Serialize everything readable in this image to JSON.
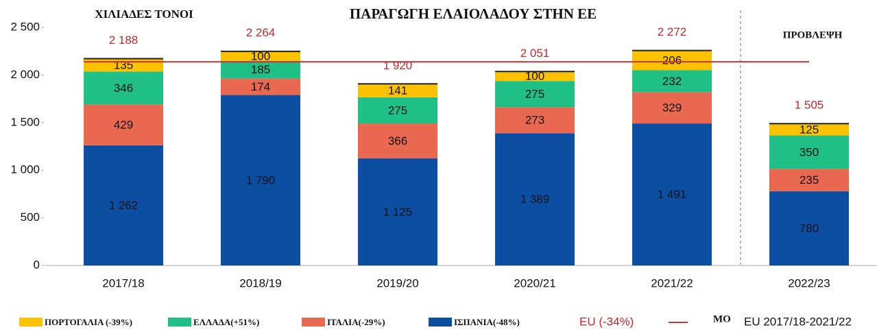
{
  "chart_data": {
    "type": "stacked_bar",
    "title": "ΠΑΡΑΓΩΓΗ ΕΛΑΙΟΛΑΔΟΥ ΣΤΗΝ ΕΕ",
    "unit_label": "ΧΙΛΙΑΔΕΣ ΤΟΝΟΙ",
    "forecast_label": "ΠΡΟΒΛΕΨΗ",
    "categories": [
      "2017/18",
      "2018/19",
      "2019/20",
      "2020/21",
      "2021/22",
      "2022/23"
    ],
    "series": [
      {
        "name": "ΙΣΠΑΝΙΑ(-48%)",
        "color": "#0b4ea2",
        "values": [
          1262,
          1790,
          1125,
          1389,
          1491,
          780
        ],
        "value_labels": [
          "1 262",
          "1 790",
          "1 125",
          "1 389",
          "1 491",
          "780"
        ]
      },
      {
        "name": "ΙΤΑΛΙΑ(-29%)",
        "color": "#e8694f",
        "values": [
          429,
          174,
          366,
          273,
          329,
          235
        ]
      },
      {
        "name": "ΕΛΛΑΔΑ(+51%)",
        "color": "#1fbf86",
        "values": [
          346,
          185,
          275,
          275,
          232,
          350
        ]
      },
      {
        "name": "ΠΟΡΤΟΓΑΛΙΑ (-39%)",
        "color": "#fcc200",
        "values": [
          135,
          100,
          141,
          100,
          206,
          125
        ]
      }
    ],
    "totals": {
      "name": "EU (-34%)",
      "color": "#c8282a",
      "values": [
        2188,
        2264,
        1920,
        2051,
        2272,
        1505
      ],
      "value_labels": [
        "2 188",
        "2 264",
        "1 920",
        "2 051",
        "2 272",
        "1 505"
      ]
    },
    "average": {
      "value": 2139,
      "color": "#d03030",
      "legend": [
        "ΜΟ",
        "EU 2017/18-2021/22"
      ]
    },
    "ylim": [
      0,
      2500
    ],
    "yticks": [
      0,
      500,
      {
        "value": 1000,
        "label": "1 000"
      },
      {
        "value": 1500,
        "label": "1 500"
      },
      {
        "value": 2000,
        "label": "2 000"
      },
      {
        "value": 2500,
        "label": "2 500"
      }
    ]
  }
}
